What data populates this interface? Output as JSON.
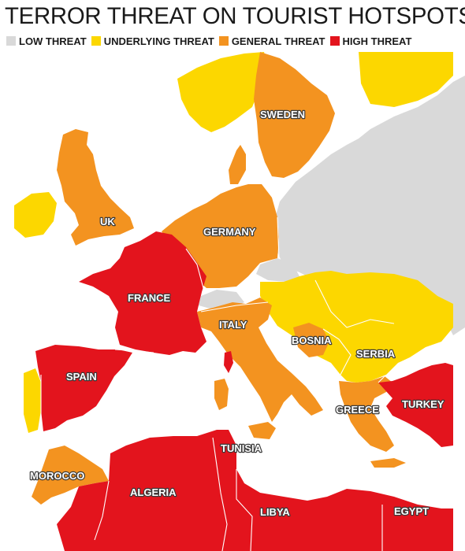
{
  "title": "TERROR THREAT ON TOURIST HOTSPOTS",
  "legend": [
    {
      "label": "LOW THREAT",
      "color": "#d9d9d9"
    },
    {
      "label": "UNDERLYING THREAT",
      "color": "#fcd700"
    },
    {
      "label": "GENERAL THREAT",
      "color": "#f39320"
    },
    {
      "label": "HIGH THREAT",
      "color": "#e3141d"
    }
  ],
  "colors": {
    "low": "#d9d9d9",
    "underlying": "#fcd700",
    "general": "#f39320",
    "high": "#e3141d",
    "sea": "#ffffff"
  },
  "countries": {
    "sweden": {
      "label": "SWEDEN",
      "threat": "general"
    },
    "uk": {
      "label": "UK",
      "threat": "general"
    },
    "germany": {
      "label": "GERMANY",
      "threat": "general"
    },
    "france": {
      "label": "FRANCE",
      "threat": "high"
    },
    "italy": {
      "label": "ITALY",
      "threat": "general"
    },
    "bosnia": {
      "label": "BOSNIA",
      "threat": "general"
    },
    "serbia": {
      "label": "SERBIA",
      "threat": "underlying"
    },
    "spain": {
      "label": "SPAIN",
      "threat": "high"
    },
    "greece": {
      "label": "GREECE",
      "threat": "general"
    },
    "turkey": {
      "label": "TURKEY",
      "threat": "high"
    },
    "tunisia": {
      "label": "TUNISIA",
      "threat": "high"
    },
    "morocco": {
      "label": "MOROCCO",
      "threat": "general"
    },
    "algeria": {
      "label": "ALGERIA",
      "threat": "high"
    },
    "libya": {
      "label": "LIBYA",
      "threat": "high"
    },
    "egypt": {
      "label": "EGYPT",
      "threat": "high"
    }
  }
}
